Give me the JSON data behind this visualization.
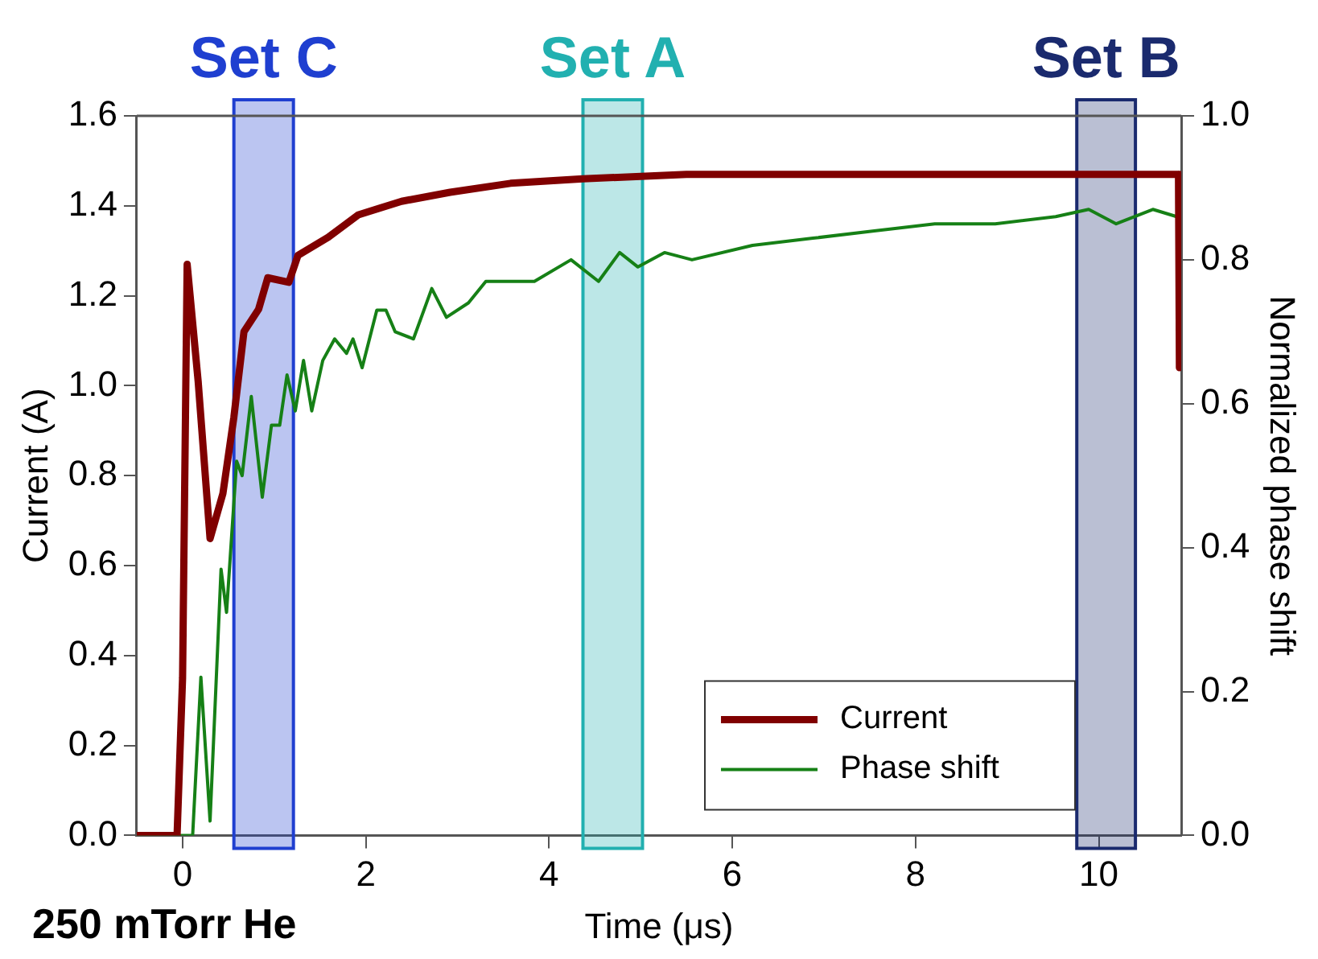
{
  "chart_data": {
    "type": "line",
    "xlabel": "Time (μs)",
    "ylabel": "Current (A)",
    "y2label": "Normalized phase shift",
    "xlim": [
      -0.5,
      10.9
    ],
    "xticks": [
      0,
      2,
      4,
      6,
      8,
      10
    ],
    "ylim": [
      0,
      1.6
    ],
    "yticks": [
      {
        "value": 0,
        "label": "0.0"
      },
      {
        "value": 0.2,
        "label": "0.2"
      },
      {
        "value": 0.4,
        "label": "0.4"
      },
      {
        "value": 0.6,
        "label": "0.6"
      },
      {
        "value": 0.8,
        "label": "0.8"
      },
      {
        "value": 1.0,
        "label": "1.0"
      },
      {
        "value": 1.2,
        "label": "1.2"
      },
      {
        "value": 1.4,
        "label": "1.4"
      },
      {
        "value": 1.6,
        "label": "1.6"
      }
    ],
    "y2lim": [
      0,
      1.0
    ],
    "y2ticks": [
      {
        "value": 0,
        "label": "0.0"
      },
      {
        "value": 0.2,
        "label": "0.2"
      },
      {
        "value": 0.4,
        "label": "0.4"
      },
      {
        "value": 0.6,
        "label": "0.6"
      },
      {
        "value": 0.8,
        "label": "0.8"
      },
      {
        "value": 1.0,
        "label": "1.0"
      }
    ],
    "series": [
      {
        "name": "Current",
        "color": "#800000",
        "x": [
          -0.5,
          -0.06,
          0,
          0.05,
          0.17,
          0.3,
          0.44,
          0.56,
          0.67,
          0.83,
          0.93,
          1.16,
          1.26,
          1.59,
          1.92,
          2.39,
          2.92,
          3.58,
          4.37,
          5.5,
          7,
          8.5,
          10,
          10.87,
          10.88
        ],
        "values": [
          0,
          0,
          0.35,
          1.27,
          1.01,
          0.66,
          0.76,
          0.93,
          1.12,
          1.17,
          1.24,
          1.23,
          1.29,
          1.33,
          1.38,
          1.41,
          1.43,
          1.45,
          1.46,
          1.47,
          1.47,
          1.47,
          1.47,
          1.47,
          1.04
        ]
      },
      {
        "name": "Phase shift",
        "color": "#168016",
        "axis": "y2",
        "x": [
          -0.5,
          0.11,
          0.2,
          0.3,
          0.42,
          0.48,
          0.59,
          0.65,
          0.75,
          0.87,
          0.97,
          1.06,
          1.14,
          1.23,
          1.32,
          1.41,
          1.53,
          1.66,
          1.79,
          1.86,
          1.96,
          2.12,
          2.22,
          2.32,
          2.52,
          2.72,
          2.88,
          3.12,
          3.31,
          3.58,
          3.84,
          4.24,
          4.54,
          4.77,
          4.97,
          5.26,
          5.56,
          6.22,
          6.88,
          7.55,
          8.21,
          8.87,
          9.53,
          9.89,
          10.19,
          10.59,
          10.85
        ],
        "values": [
          0,
          0,
          0.22,
          0.02,
          0.37,
          0.31,
          0.52,
          0.5,
          0.61,
          0.47,
          0.57,
          0.57,
          0.64,
          0.59,
          0.66,
          0.59,
          0.66,
          0.69,
          0.67,
          0.69,
          0.65,
          0.73,
          0.73,
          0.7,
          0.69,
          0.76,
          0.72,
          0.74,
          0.77,
          0.77,
          0.77,
          0.8,
          0.77,
          0.81,
          0.79,
          0.81,
          0.8,
          0.82,
          0.83,
          0.84,
          0.85,
          0.85,
          0.86,
          0.87,
          0.85,
          0.87,
          0.86
        ]
      }
    ],
    "bands": [
      {
        "axis": "x",
        "from": 0.56,
        "to": 1.21,
        "label": "Set C",
        "color": "#1f3fd0"
      },
      {
        "axis": "x",
        "from": 4.37,
        "to": 5.02,
        "label": "Set A",
        "color": "#22b0b0"
      },
      {
        "axis": "x",
        "from": 9.76,
        "to": 10.4,
        "label": "Set B",
        "color": "#1a2a6e"
      }
    ],
    "annotations": [
      "250 mTorr He"
    ],
    "legend": "bottom right",
    "grid": false,
    "marker": "none",
    "line_style": "solid"
  }
}
